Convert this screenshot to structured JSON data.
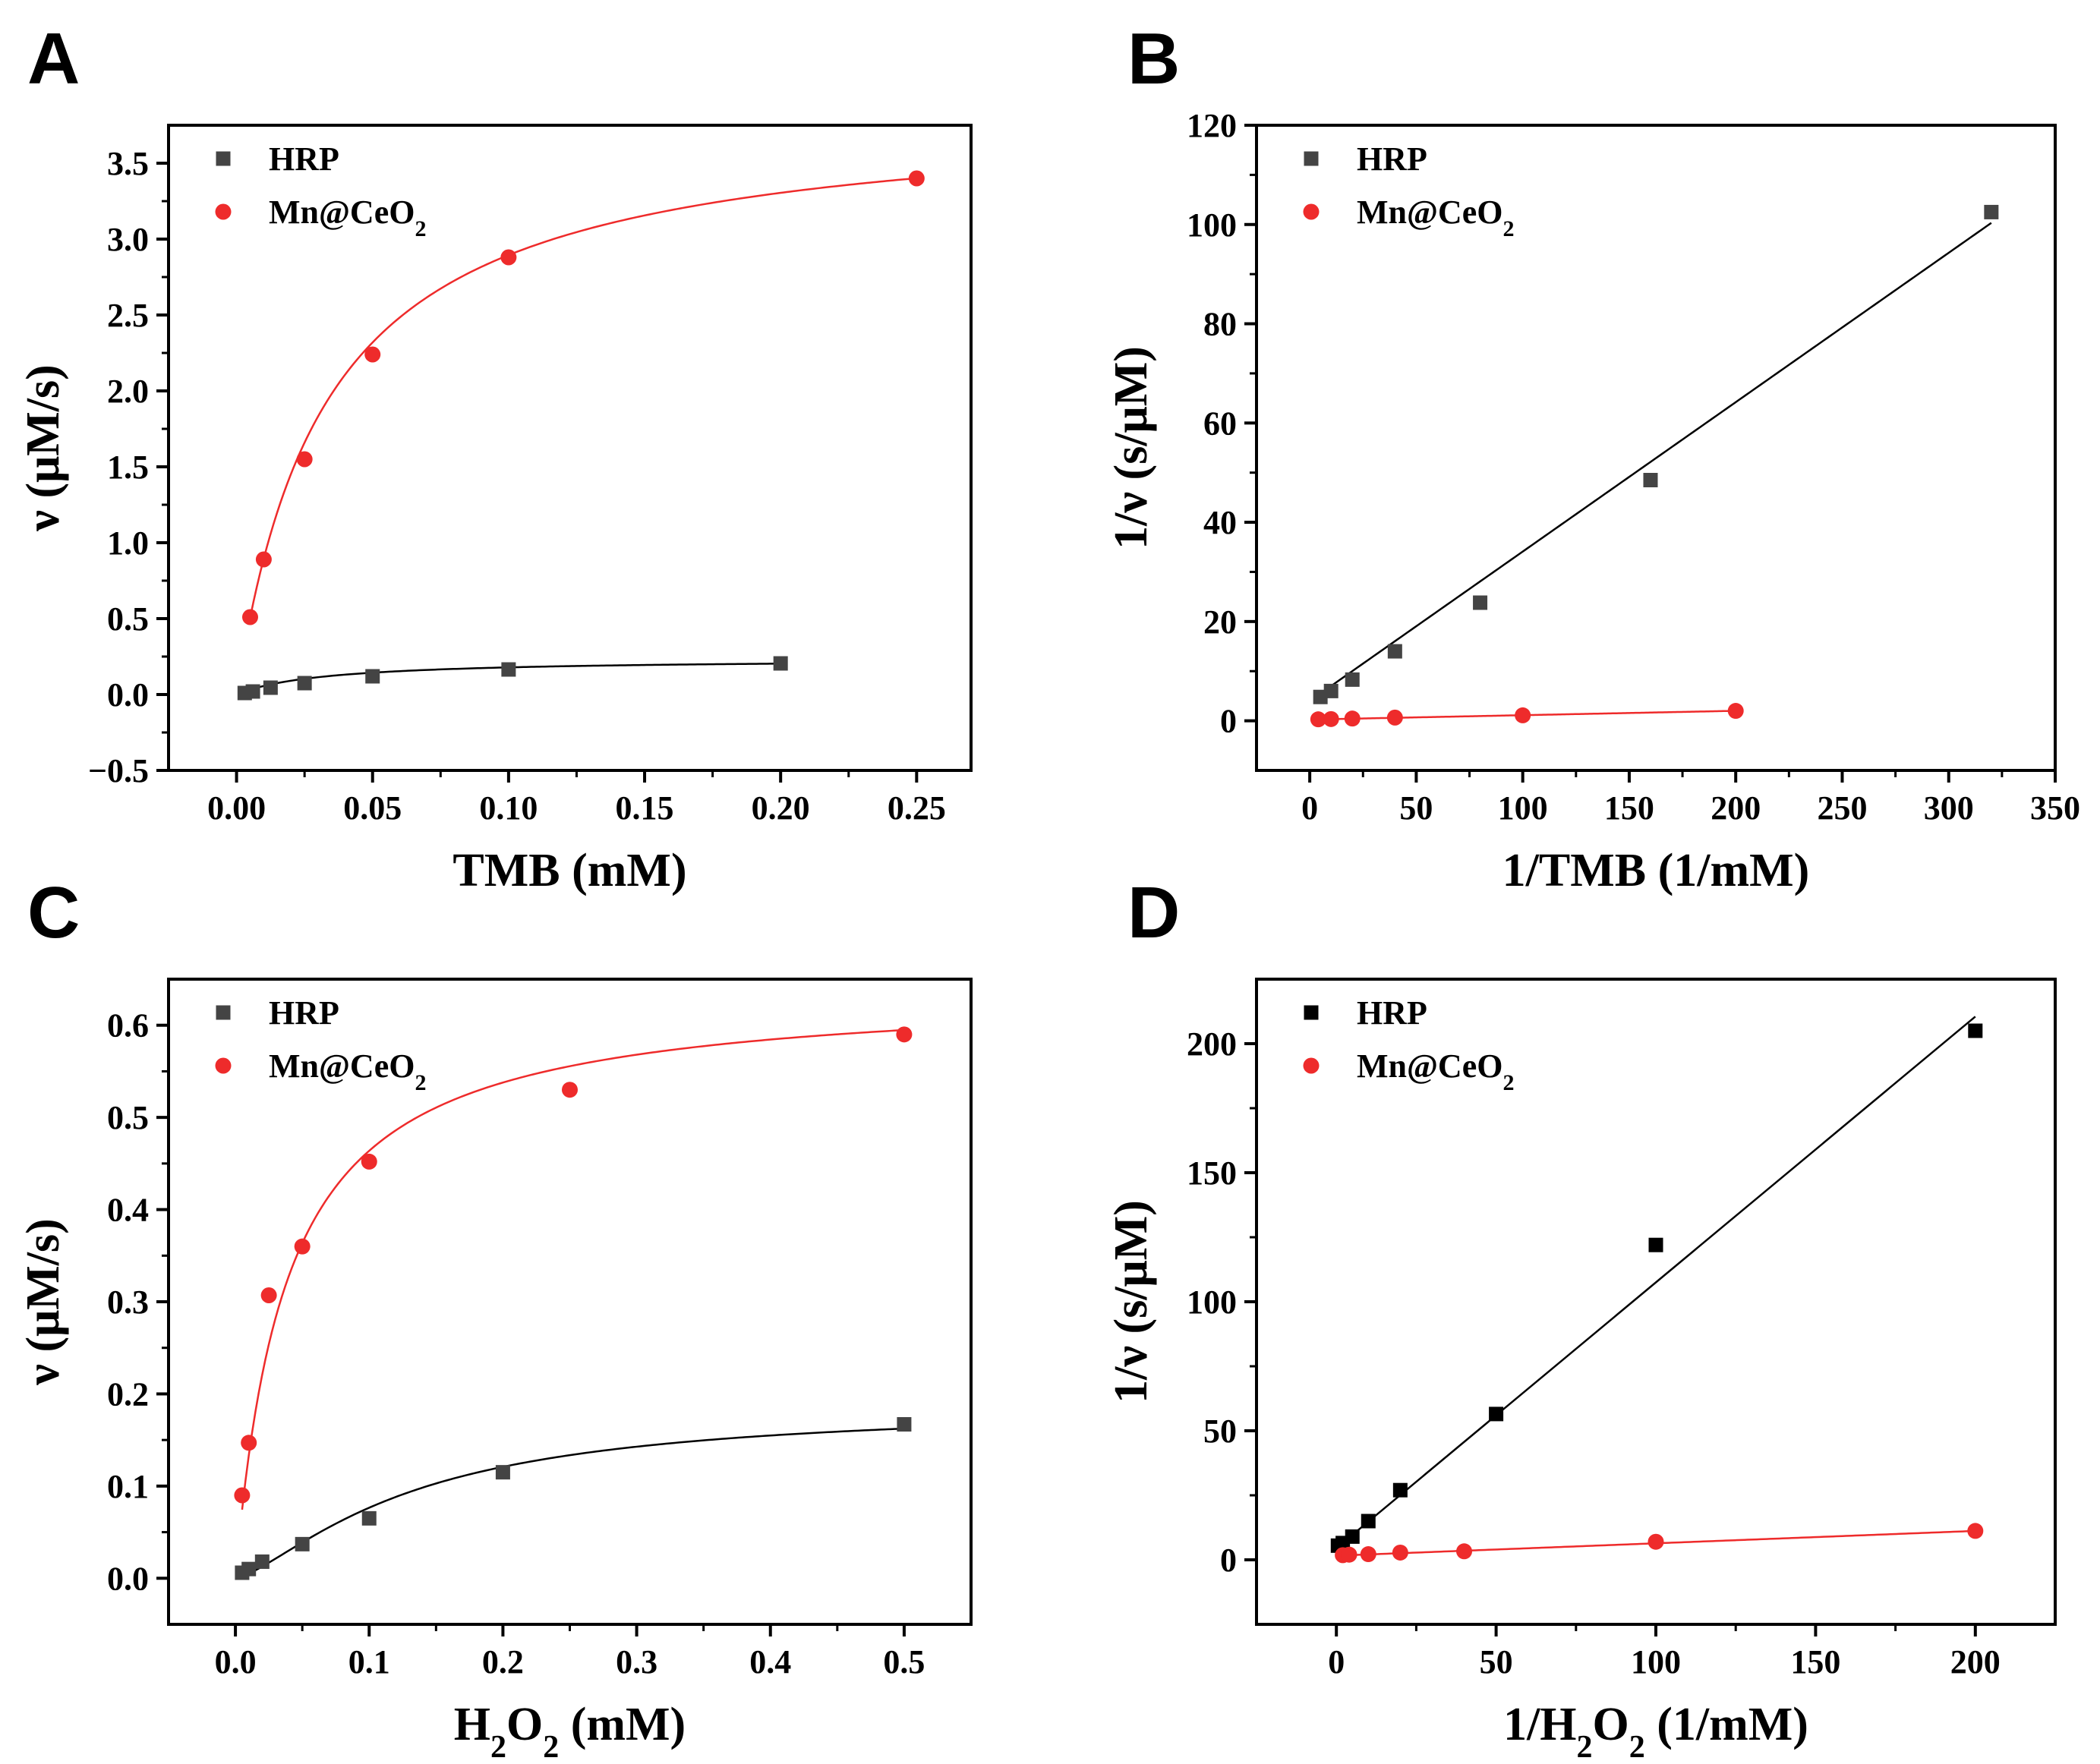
{
  "chart_data": [
    {
      "panel": "A",
      "type": "scatter",
      "xlabel": "TMB (mM)",
      "ylabel": "ν (μM/s)",
      "xlim": [
        -0.025,
        0.27
      ],
      "ylim": [
        -0.5,
        3.75
      ],
      "xticks": [
        0,
        0.05,
        0.1,
        0.15,
        0.2,
        0.25
      ],
      "xtick_labels": [
        "0.00",
        "0.05",
        "0.10",
        "0.15",
        "0.20",
        "0.25"
      ],
      "yticks": [
        -0.5,
        0,
        0.5,
        1,
        1.5,
        2,
        2.5,
        3,
        3.5
      ],
      "ytick_labels": [
        "−0.5",
        "0.0",
        "0.5",
        "1.0",
        "1.5",
        "2.0",
        "2.5",
        "3.0",
        "3.5"
      ],
      "series": [
        {
          "name": "HRP",
          "legend_label": "HRP",
          "marker": "square",
          "color": "#444444",
          "points": [
            [
              0.003,
              0.01
            ],
            [
              0.006,
              0.02
            ],
            [
              0.0125,
              0.045
            ],
            [
              0.025,
              0.075
            ],
            [
              0.05,
              0.12
            ],
            [
              0.1,
              0.165
            ],
            [
              0.2,
              0.205
            ]
          ],
          "fit": {
            "model": "michaelis-menten",
            "vmax": 0.236,
            "km": 0.032,
            "x_range": [
              0.003,
              0.2
            ]
          }
        },
        {
          "name": "Mn@CeO2",
          "legend_label": "Mn@CeO",
          "legend_subscript": "2",
          "marker": "circle",
          "color": "#ee2b2b",
          "points": [
            [
              0.005,
              0.51
            ],
            [
              0.01,
              0.89
            ],
            [
              0.025,
              1.55
            ],
            [
              0.05,
              2.24
            ],
            [
              0.1,
              2.88
            ],
            [
              0.25,
              3.4
            ]
          ],
          "fit": {
            "model": "michaelis-menten",
            "vmax": 3.85,
            "km": 0.033,
            "x_range": [
              0.005,
              0.25
            ]
          }
        }
      ]
    },
    {
      "panel": "B",
      "type": "scatter",
      "xlabel": "1/TMB (1/mM)",
      "ylabel": "1/ν (s/μM)",
      "xlim": [
        -25,
        350
      ],
      "ylim": [
        -10,
        120
      ],
      "xticks": [
        0,
        50,
        100,
        150,
        200,
        250,
        300,
        350
      ],
      "xtick_labels": [
        "0",
        "50",
        "100",
        "150",
        "200",
        "250",
        "300",
        "350"
      ],
      "yticks": [
        0,
        20,
        40,
        60,
        80,
        100,
        120
      ],
      "ytick_labels": [
        "0",
        "20",
        "40",
        "60",
        "80",
        "100",
        "120"
      ],
      "series": [
        {
          "name": "HRP",
          "legend_label": "HRP",
          "marker": "square",
          "color": "#444444",
          "points": [
            [
              5,
              4.8
            ],
            [
              10,
              6.0
            ],
            [
              20,
              8.3
            ],
            [
              40,
              14
            ],
            [
              80,
              23.8
            ],
            [
              160,
              48.5
            ],
            [
              320,
              102.5
            ]
          ],
          "fit": {
            "model": "linear",
            "slope": 0.301,
            "intercept": 4.0,
            "x_range": [
              5,
              320
            ]
          }
        },
        {
          "name": "Mn@CeO2",
          "legend_label": "Mn@CeO",
          "legend_subscript": "2",
          "marker": "circle",
          "color": "#ee2b2b",
          "points": [
            [
              4,
              0.3
            ],
            [
              10,
              0.35
            ],
            [
              20,
              0.45
            ],
            [
              40,
              0.65
            ],
            [
              100,
              1.1
            ],
            [
              200,
              2.0
            ]
          ],
          "fit": {
            "model": "linear",
            "slope": 0.0088,
            "intercept": 0.25,
            "x_range": [
              4,
              200
            ]
          }
        }
      ]
    },
    {
      "panel": "C",
      "type": "scatter",
      "xlabel": "H2O2 (mM)",
      "xlabel_parts": [
        "H",
        "2",
        "O",
        "2",
        " (mM)"
      ],
      "ylabel": "ν (μM/s)",
      "xlim": [
        -0.05,
        0.55
      ],
      "ylim": [
        -0.05,
        0.65
      ],
      "xticks": [
        0,
        0.1,
        0.2,
        0.3,
        0.4,
        0.5
      ],
      "xtick_labels": [
        "0.0",
        "0.1",
        "0.2",
        "0.3",
        "0.4",
        "0.5"
      ],
      "yticks": [
        0,
        0.1,
        0.2,
        0.3,
        0.4,
        0.5,
        0.6
      ],
      "ytick_labels": [
        "0.0",
        "0.1",
        "0.2",
        "0.3",
        "0.4",
        "0.5",
        "0.6"
      ],
      "series": [
        {
          "name": "HRP",
          "legend_label": "HRP",
          "marker": "square",
          "color": "#444444",
          "points": [
            [
              0.005,
              0.006
            ],
            [
              0.01,
              0.01
            ],
            [
              0.02,
              0.018
            ],
            [
              0.05,
              0.037
            ],
            [
              0.1,
              0.065
            ],
            [
              0.2,
              0.115
            ],
            [
              0.5,
              0.167
            ]
          ],
          "fit": {
            "model": "hill",
            "vmax": 0.187,
            "km": 0.13,
            "n": 1.4,
            "x_range": [
              0.005,
              0.5
            ]
          }
        },
        {
          "name": "Mn@CeO2",
          "legend_label": "Mn@CeO",
          "legend_subscript": "2",
          "marker": "circle",
          "color": "#ee2b2b",
          "points": [
            [
              0.005,
              0.09
            ],
            [
              0.01,
              0.147
            ],
            [
              0.025,
              0.307
            ],
            [
              0.05,
              0.36
            ],
            [
              0.1,
              0.452
            ],
            [
              0.25,
              0.53
            ],
            [
              0.5,
              0.59
            ]
          ],
          "fit": {
            "model": "michaelis-menten",
            "vmax": 0.64,
            "km": 0.038,
            "x_range": [
              0.005,
              0.5
            ]
          }
        }
      ]
    },
    {
      "panel": "D",
      "type": "scatter",
      "xlabel": "1/H2O2 (1/mM)",
      "xlabel_parts": [
        "1/H",
        "2",
        "O",
        "2",
        " (1/mM)"
      ],
      "ylabel": "1/ν (s/μM)",
      "xlim": [
        -25,
        225
      ],
      "ylim": [
        -25,
        225
      ],
      "xticks": [
        0,
        50,
        100,
        150,
        200
      ],
      "xtick_labels": [
        "0",
        "50",
        "100",
        "150",
        "200"
      ],
      "yticks": [
        0,
        50,
        100,
        150,
        200
      ],
      "ytick_labels": [
        "0",
        "50",
        "100",
        "150",
        "200"
      ],
      "series": [
        {
          "name": "HRP",
          "legend_label": "HRP",
          "marker": "square",
          "color": "#000000",
          "points": [
            [
              0.5,
              5.5
            ],
            [
              2,
              6.5
            ],
            [
              5,
              9
            ],
            [
              10,
              15
            ],
            [
              20,
              27
            ],
            [
              50,
              56.5
            ],
            [
              100,
              122
            ],
            [
              200,
              205
            ]
          ],
          "fit": {
            "model": "linear",
            "slope": 1.03,
            "intercept": 4.5,
            "x_range": [
              0,
              200
            ]
          }
        },
        {
          "name": "Mn@CeO2",
          "legend_label": "Mn@CeO",
          "legend_subscript": "2",
          "marker": "circle",
          "color": "#ee2b2b",
          "points": [
            [
              2,
              1.8
            ],
            [
              4,
              2.0
            ],
            [
              10,
              2.2
            ],
            [
              20,
              2.8
            ],
            [
              40,
              3.3
            ],
            [
              100,
              7.0
            ],
            [
              200,
              11.2
            ]
          ],
          "fit": {
            "model": "linear",
            "slope": 0.048,
            "intercept": 1.6,
            "x_range": [
              2,
              200
            ]
          }
        }
      ]
    }
  ],
  "panel_labels": [
    "A",
    "B",
    "C",
    "D"
  ]
}
